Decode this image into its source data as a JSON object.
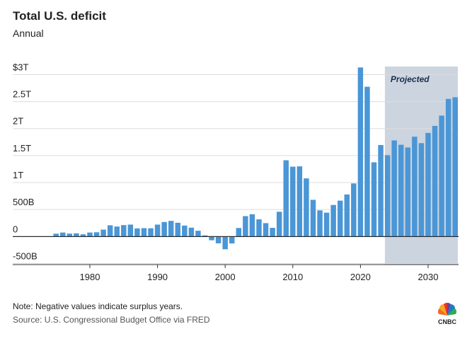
{
  "chart_data": {
    "type": "bar",
    "title": "Total U.S. deficit",
    "subtitle": "Annual",
    "x": [
      1975,
      1976,
      1977,
      1978,
      1979,
      1980,
      1981,
      1982,
      1983,
      1984,
      1985,
      1986,
      1987,
      1988,
      1989,
      1990,
      1991,
      1992,
      1993,
      1994,
      1995,
      1996,
      1997,
      1998,
      1999,
      2000,
      2001,
      2002,
      2003,
      2004,
      2005,
      2006,
      2007,
      2008,
      2009,
      2010,
      2011,
      2012,
      2013,
      2014,
      2015,
      2016,
      2017,
      2018,
      2019,
      2020,
      2021,
      2022,
      2023,
      2024,
      2025,
      2026,
      2027,
      2028,
      2029,
      2030,
      2031,
      2032,
      2033,
      2034
    ],
    "values": [
      0.053,
      0.074,
      0.054,
      0.059,
      0.041,
      0.074,
      0.079,
      0.128,
      0.208,
      0.185,
      0.212,
      0.221,
      0.15,
      0.155,
      0.153,
      0.221,
      0.269,
      0.29,
      0.255,
      0.203,
      0.164,
      0.107,
      0.022,
      -0.069,
      -0.126,
      -0.236,
      -0.128,
      0.158,
      0.378,
      0.413,
      0.318,
      0.248,
      0.161,
      0.459,
      1.413,
      1.294,
      1.3,
      1.077,
      0.68,
      0.485,
      0.442,
      0.585,
      0.665,
      0.779,
      0.984,
      3.132,
      2.775,
      1.375,
      1.695,
      1.507,
      1.781,
      1.7,
      1.65,
      1.85,
      1.73,
      1.92,
      2.05,
      2.24,
      2.55,
      2.58
    ],
    "color": "#4a96d6",
    "xlim": [
      1968.6,
      2034.5
    ],
    "xticks": [
      1980,
      1990,
      2000,
      2010,
      2020,
      2030
    ],
    "ylim": [
      -0.52,
      3.15
    ],
    "yticks": [
      {
        "value": 3,
        "label": "$3T"
      },
      {
        "value": 2.5,
        "label": "2.5T"
      },
      {
        "value": 2,
        "label": "2T"
      },
      {
        "value": 1.5,
        "label": "1.5T"
      },
      {
        "value": 1,
        "label": "1T"
      },
      {
        "value": 0.5,
        "label": "500B"
      },
      0,
      {
        "value": -0.5,
        "label": "-500B"
      }
    ],
    "grid": true,
    "projected_range": [
      2024,
      2034
    ],
    "projected_label": "Projected",
    "projected_color": "#ccd4df",
    "note": "Note: Negative values indicate surplus years.",
    "source": "Source: U.S. Congressional Budget Office via FRED",
    "logo": "CNBC"
  }
}
